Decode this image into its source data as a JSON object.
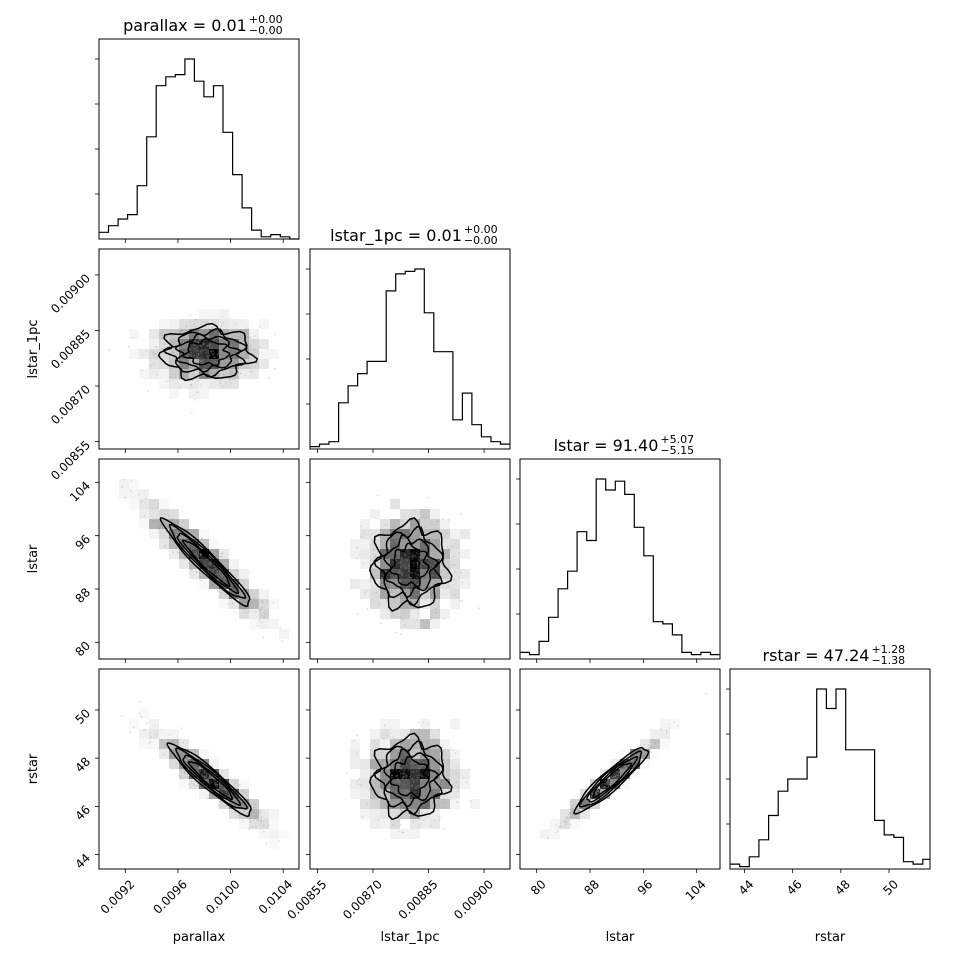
{
  "chart_data": {
    "type": "corner",
    "variables": [
      {
        "key": "parallax",
        "axis_label": "parallax",
        "title_name": "parallax",
        "median": "0.01",
        "plus": "+0.00",
        "minus": "−0.00",
        "range": [
          0.009,
          0.01052
        ],
        "ticks": [
          {
            "v": 0.0092,
            "l": "0.0092"
          },
          {
            "v": 0.0096,
            "l": "0.0096"
          },
          {
            "v": 0.01,
            "l": "0.0100"
          },
          {
            "v": 0.0104,
            "l": "0.0104"
          }
        ]
      },
      {
        "key": "lstar_1pc",
        "axis_label": "lstar_1pc",
        "title_name": "lstar_1pc",
        "median": "0.01",
        "plus": "+0.00",
        "minus": "−0.00",
        "range": [
          0.00853,
          0.00907
        ],
        "ticks": [
          {
            "v": 0.00855,
            "l": "0.00855"
          },
          {
            "v": 0.0087,
            "l": "0.00870"
          },
          {
            "v": 0.00885,
            "l": "0.00885"
          },
          {
            "v": 0.009,
            "l": "0.00900"
          }
        ]
      },
      {
        "key": "lstar",
        "axis_label": "lstar",
        "title_name": "lstar",
        "median": "91.40",
        "plus": "+5.07",
        "minus": "−5.15",
        "range": [
          77.5,
          107.5
        ],
        "ticks": [
          {
            "v": 80,
            "l": "80"
          },
          {
            "v": 88,
            "l": "88"
          },
          {
            "v": 96,
            "l": "96"
          },
          {
            "v": 104,
            "l": "104"
          }
        ]
      },
      {
        "key": "rstar",
        "axis_label": "rstar",
        "title_name": "rstar",
        "median": "47.24",
        "plus": "+1.28",
        "minus": "−1.38",
        "range": [
          43.4,
          51.7
        ],
        "ticks": [
          {
            "v": 44,
            "l": "44"
          },
          {
            "v": 46,
            "l": "46"
          },
          {
            "v": 48,
            "l": "48"
          },
          {
            "v": 50,
            "l": "50"
          }
        ]
      }
    ],
    "histograms": [
      {
        "variable": "parallax",
        "edges": [
          0.009,
          0.0090725,
          0.009145,
          0.0092175,
          0.00929,
          0.0093625,
          0.009435,
          0.0095075,
          0.00958,
          0.0096525,
          0.009725,
          0.0097975,
          0.00987,
          0.0099425,
          0.010015,
          0.0100875,
          0.01016,
          0.0102325,
          0.010305,
          0.0103775,
          0.01045,
          0.0105225
        ],
        "counts": [
          3,
          6,
          9,
          11,
          24,
          46,
          69,
          73,
          74,
          81,
          71,
          64,
          69,
          48,
          29,
          14,
          4,
          1,
          2,
          1,
          0
        ]
      },
      {
        "variable": "lstar_1pc",
        "edges": [
          0.00853,
          0.008555714,
          0.008581429,
          0.008607143,
          0.008632857,
          0.008658571,
          0.008684286,
          0.00871,
          0.008735714,
          0.008761429,
          0.008787143,
          0.008812857,
          0.008838571,
          0.008864286,
          0.00889,
          0.008915714,
          0.008941429,
          0.008967143,
          0.008992857,
          0.009018571,
          0.009044286,
          0.00907
        ],
        "counts": [
          1,
          2,
          3,
          19,
          26,
          31,
          36,
          36,
          65,
          72,
          73,
          74,
          56,
          40,
          40,
          12,
          23,
          10,
          5,
          3,
          2
        ]
      },
      {
        "variable": "lstar",
        "edges": [
          77.5,
          78.93,
          80.36,
          81.79,
          83.21,
          84.64,
          86.07,
          87.5,
          88.93,
          90.36,
          91.79,
          93.21,
          94.64,
          96.07,
          97.5,
          98.93,
          100.36,
          101.79,
          103.21,
          104.64,
          106.07,
          107.5
        ],
        "counts": [
          3,
          2,
          8,
          19,
          32,
          40,
          58,
          54,
          82,
          77,
          81,
          75,
          60,
          47,
          17,
          16,
          11,
          3,
          2,
          3,
          2
        ]
      },
      {
        "variable": "rstar",
        "edges": [
          43.4,
          43.8,
          44.2,
          44.6,
          45.0,
          45.4,
          45.8,
          46.2,
          46.6,
          47.0,
          47.4,
          47.8,
          48.2,
          48.6,
          49.0,
          49.4,
          49.8,
          50.2,
          50.6,
          51.0,
          51.4,
          51.7
        ],
        "counts": [
          2,
          1,
          5,
          12,
          22,
          32,
          37,
          37,
          46,
          74,
          66,
          74,
          49,
          49,
          49,
          20,
          14,
          13,
          3,
          2,
          4
        ]
      }
    ],
    "contour_levels_sigma": [
      0.5,
      1.0,
      1.5,
      2.0
    ],
    "pairs": [
      {
        "x": "parallax",
        "y": "lstar_1pc",
        "shape": "blob",
        "center": [
          0.00982,
          0.00879
        ],
        "radii": [
          0.00044,
          9e-05
        ],
        "rot": 0
      },
      {
        "x": "parallax",
        "y": "lstar",
        "shape": "line",
        "start": [
          0.00934,
          101.2
        ],
        "end": [
          0.0103,
          82.7
        ],
        "width": [
          0.0002,
          1.6
        ]
      },
      {
        "x": "lstar_1pc",
        "y": "lstar",
        "shape": "blob",
        "center": [
          0.0088,
          91.5
        ],
        "radii": [
          0.00013,
          8.2
        ],
        "rot": 0
      },
      {
        "x": "parallax",
        "y": "rstar",
        "shape": "line",
        "start": [
          0.0094,
          49.2
        ],
        "end": [
          0.0103,
          45.0
        ],
        "width": [
          0.00018,
          0.35
        ]
      },
      {
        "x": "lstar_1pc",
        "y": "rstar",
        "shape": "blob",
        "center": [
          0.0088,
          47.2
        ],
        "radii": [
          0.00013,
          2.1
        ],
        "rot": 0
      },
      {
        "x": "lstar",
        "y": "rstar",
        "shape": "line",
        "start": [
          83.5,
          45.2
        ],
        "end": [
          99.0,
          49.0
        ],
        "width": [
          1.5,
          0.3
        ]
      }
    ],
    "colors": {
      "axes": "#000000",
      "density": "#000000"
    }
  }
}
